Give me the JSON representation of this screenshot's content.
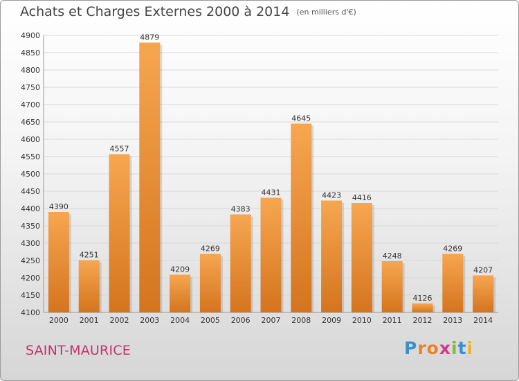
{
  "title": "Achats et Charges Externes 2000 à 2014",
  "subtitle": "(en milliers d'€)",
  "city": "SAINT-MAURICE",
  "logo": [
    "P",
    "r",
    "o",
    "x",
    "i",
    "t",
    "i"
  ],
  "chart_data": {
    "type": "bar",
    "title": "Achats et Charges Externes 2000 à 2014",
    "subtitle": "(en milliers d'€)",
    "categories": [
      "2000",
      "2001",
      "2002",
      "2003",
      "2004",
      "2005",
      "2006",
      "2007",
      "2008",
      "2009",
      "2010",
      "2011",
      "2012",
      "2013",
      "2014"
    ],
    "values": [
      4390,
      4251,
      4557,
      4879,
      4209,
      4269,
      4383,
      4431,
      4645,
      4423,
      4416,
      4248,
      4126,
      4269,
      4207
    ],
    "ylim": [
      4100,
      4900
    ],
    "yticks": [
      4100,
      4150,
      4200,
      4250,
      4300,
      4350,
      4400,
      4450,
      4500,
      4550,
      4600,
      4650,
      4700,
      4750,
      4800,
      4850,
      4900
    ],
    "grid": true,
    "colors": {
      "bar_light": "#f7a650",
      "bar_dark": "#d4741e",
      "grid": "#d9d9d9",
      "text": "#333333"
    }
  }
}
